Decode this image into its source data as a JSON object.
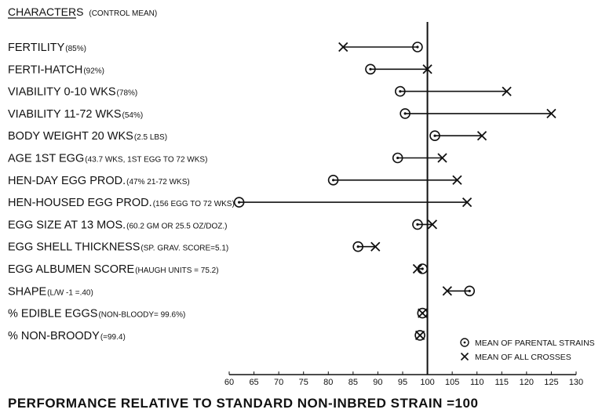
{
  "chart_data": {
    "type": "dot-range",
    "header": {
      "main": "CHARACTERS",
      "sub": "(CONTROL MEAN)"
    },
    "xlabel": "PERFORMANCE RELATIVE TO STANDARD NON-INBRED STRAIN =100",
    "xlim": [
      60,
      130
    ],
    "xticks": [
      60,
      65,
      70,
      75,
      80,
      85,
      90,
      95,
      100,
      105,
      110,
      115,
      120,
      125,
      130
    ],
    "reference": 100,
    "legend": [
      {
        "symbol": "circle-dot",
        "label": "MEAN OF PARENTAL STRAINS"
      },
      {
        "symbol": "x",
        "label": "MEAN OF ALL CROSSES"
      }
    ],
    "categories": [
      {
        "name": "FERTILITY",
        "note": "(85%)",
        "parental": 98,
        "crosses": 83
      },
      {
        "name": "FERTI-HATCH",
        "note": "(92%)",
        "parental": 88.5,
        "crosses": 100
      },
      {
        "name": "VIABILITY 0-10 WKS",
        "note": "(78%)",
        "parental": 94.5,
        "crosses": 116
      },
      {
        "name": "VIABILITY 11-72 WKS",
        "note": "(54%)",
        "parental": 95.5,
        "crosses": 125
      },
      {
        "name": "BODY WEIGHT 20 WKS",
        "note": "(2.5 LBS)",
        "parental": 101.5,
        "crosses": 111
      },
      {
        "name": "AGE 1ST EGG",
        "note": "(43.7 WKS, 1ST EGG TO 72 WKS)",
        "parental": 94,
        "crosses": 103
      },
      {
        "name": "HEN-DAY EGG PROD.",
        "note": "(47% 21-72 WKS)",
        "parental": 81,
        "crosses": 106
      },
      {
        "name": "HEN-HOUSED EGG PROD.",
        "note": "(156 EGG TO 72 WKS)",
        "parental": 62,
        "crosses": 108
      },
      {
        "name": "EGG SIZE AT 13 MOS.",
        "note": "(60.2 GM OR 25.5 OZ/DOZ.)",
        "parental": 98,
        "crosses": 101
      },
      {
        "name": "EGG SHELL THICKNESS",
        "note": "(SP. GRAV. SCORE=5.1)",
        "parental": 86,
        "crosses": 89.5
      },
      {
        "name": "EGG ALBUMEN SCORE",
        "note": "(HAUGH UNITS = 75.2)",
        "parental": 99,
        "crosses": 98
      },
      {
        "name": "SHAPE",
        "note": "(L/W -1 =.40)",
        "parental": 108.5,
        "crosses": 104
      },
      {
        "name": "% EDIBLE EGGS",
        "note": "(NON-BLOODY= 99.6%)",
        "parental": 99,
        "crosses": 99
      },
      {
        "name": "% NON-BROODY",
        "note": "(=99.4)",
        "parental": 98.5,
        "crosses": 98.5
      }
    ]
  }
}
